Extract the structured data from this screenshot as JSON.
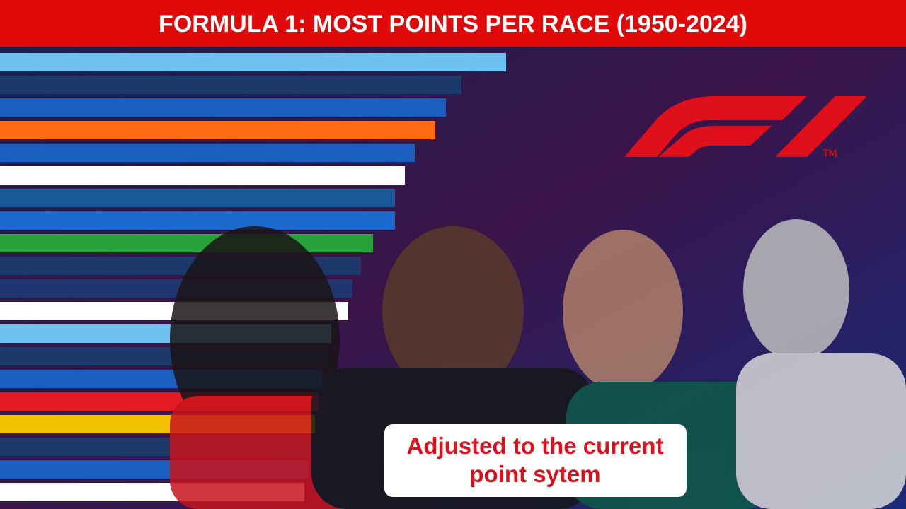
{
  "chart_data": {
    "type": "bar",
    "orientation": "horizontal",
    "title": "FORMULA 1: MOST POINTS PER RACE (1950-2024)",
    "annotation": [
      "Adjusted to the current",
      "point sytem"
    ],
    "logo_mark": "TM",
    "categories": [
      null,
      null,
      null,
      null,
      null,
      null,
      null,
      null,
      null,
      null,
      null,
      null,
      null,
      null,
      null,
      null,
      null,
      null,
      null,
      null
    ],
    "values": [
      715,
      652,
      630,
      615,
      586,
      572,
      558,
      558,
      527,
      510,
      498,
      492,
      468,
      460,
      455,
      450,
      445,
      440,
      435,
      430
    ],
    "colors": [
      "#6ec1f0",
      "#1b3a6b",
      "#1a5fbf",
      "#ff6a13",
      "#1a5fbf",
      "#ffffff",
      "#1a5a9a",
      "#1a6ad0",
      "#27a33a",
      "#1b3a6b",
      "#1e3570",
      "#ffffff",
      "#6ec1f0",
      "#1b3a6b",
      "#1a5fbf",
      "#e31b23",
      "#f2c200",
      "#1b3a6b",
      "#1a5fbf",
      "#ffffff"
    ]
  }
}
